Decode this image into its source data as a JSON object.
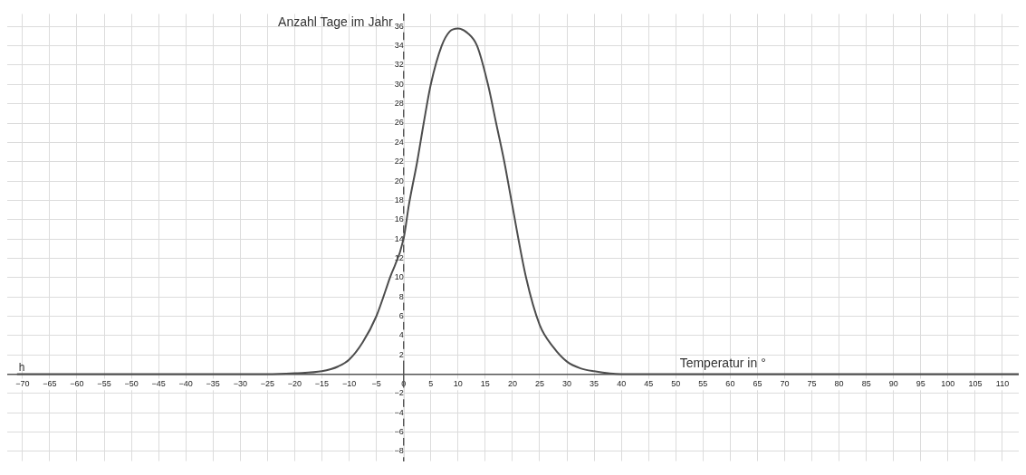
{
  "chart_data": {
    "type": "line",
    "xlabel": "Temperatur in °",
    "ylabel": "Anzahl Tage im Jahr",
    "xlim": [
      -72.8,
      113
    ],
    "ylim": [
      -9,
      37.3
    ],
    "xticks": [
      -70,
      -65,
      -60,
      -55,
      -50,
      -45,
      -40,
      -35,
      -30,
      -25,
      -20,
      -15,
      -10,
      -5,
      0,
      5,
      10,
      15,
      20,
      25,
      30,
      35,
      40,
      45,
      50,
      55,
      60,
      65,
      70,
      75,
      80,
      85,
      90,
      95,
      100,
      105,
      110
    ],
    "yticks": [
      -8,
      -6,
      -4,
      -2,
      2,
      4,
      6,
      8,
      10,
      12,
      14,
      16,
      18,
      20,
      22,
      24,
      26,
      28,
      30,
      32,
      34,
      36
    ],
    "grid": true,
    "marker": "none",
    "line_style": "solid",
    "series": [
      {
        "name": "h",
        "color": "#4d4d4d",
        "x": [
          -71,
          -40,
          -30,
          -25,
          -20,
          -15,
          -12,
          -10,
          -7.5,
          -5,
          -2.5,
          0,
          1,
          2.5,
          3.7,
          5,
          7,
          8.5,
          10,
          11.8,
          13.5,
          15.5,
          17,
          18.5,
          19.8,
          22.5,
          25,
          27.5,
          30,
          32.5,
          35,
          40,
          45,
          60,
          113
        ],
        "values": [
          0,
          0,
          0,
          0,
          0.1,
          0.3,
          0.8,
          1.5,
          3.3,
          6,
          10,
          14,
          17.6,
          22,
          26,
          30,
          34,
          35.5,
          35.8,
          35.3,
          34,
          30,
          26,
          22,
          18,
          10,
          5.1,
          2.8,
          1.3,
          0.6,
          0.3,
          0,
          0,
          0,
          0
        ]
      }
    ]
  }
}
